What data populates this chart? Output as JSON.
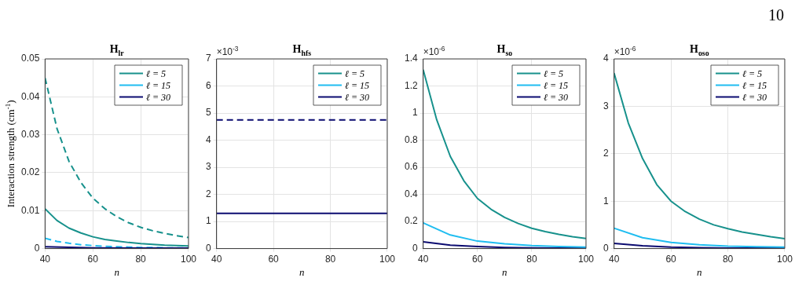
{
  "chart_data": [
    {
      "type": "line",
      "title": "H$_{lr}$",
      "xlabel": "n",
      "ylabel": "Interaction strength (cm$^{-1}$)",
      "xlim": [
        40,
        100
      ],
      "xticks": [
        40,
        60,
        80,
        100
      ],
      "ylim": [
        0,
        0.05
      ],
      "yticks": [
        0,
        0.01,
        0.02,
        0.03,
        0.04,
        0.05
      ],
      "grid": true,
      "legend": "top right",
      "marker": "none",
      "series": [
        {
          "name": "ℓ = 5",
          "color": "#17918c",
          "line_style": "solid",
          "x": [
            40,
            45,
            50,
            55,
            60,
            65,
            70,
            75,
            80,
            85,
            90,
            95,
            100
          ],
          "values": [
            0.0105,
            0.0074,
            0.0054,
            0.0041,
            0.0031,
            0.0024,
            0.002,
            0.0016,
            0.0013,
            0.0011,
            0.0009,
            0.0008,
            0.0007
          ]
        },
        {
          "name": "ℓ = 15",
          "color": "#1fbdf0",
          "line_style": "solid"
        },
        {
          "name": "ℓ = 30",
          "color": "#0b0b70",
          "line_style": "solid",
          "x": [
            40,
            60,
            80,
            100
          ],
          "values": [
            0.0005,
            0.0002,
            0.0001,
            0.0001
          ]
        },
        {
          "color": "#17918c",
          "line_style": "dashed",
          "x": [
            40,
            45,
            50,
            55,
            60,
            65,
            70,
            75,
            80,
            85,
            90,
            95,
            100
          ],
          "values": [
            0.045,
            0.0316,
            0.023,
            0.0174,
            0.0133,
            0.0105,
            0.0084,
            0.0068,
            0.0056,
            0.0047,
            0.004,
            0.0034,
            0.0029
          ]
        },
        {
          "color": "#1fbdf0",
          "line_style": "dashed",
          "x": [
            40,
            45,
            50,
            55,
            60,
            65,
            70,
            75,
            80,
            85,
            90,
            95,
            100
          ],
          "values": [
            0.0027,
            0.0019,
            0.0014,
            0.001,
            0.0008,
            0.0006,
            0.0005,
            0.0004,
            0.0003,
            0.0003,
            0.0002,
            0.0002,
            0.0002
          ]
        }
      ]
    },
    {
      "type": "line",
      "title": "H$_{hfs}$",
      "xlabel": "n",
      "xlim": [
        40,
        100
      ],
      "xticks": [
        40,
        60,
        80,
        100
      ],
      "ylim": [
        0,
        7
      ],
      "yticks": [
        0,
        1,
        2,
        3,
        4,
        5,
        6,
        7
      ],
      "grid": true,
      "legend": "top right",
      "marker": "none",
      "annotations": [
        "×10$^{-3}$"
      ],
      "series": [
        {
          "name": "ℓ = 5",
          "color": "#17918c",
          "line_style": "solid"
        },
        {
          "name": "ℓ = 15",
          "color": "#1fbdf0",
          "line_style": "solid"
        },
        {
          "name": "ℓ = 30",
          "color": "#0b0b70",
          "line_style": "solid",
          "x": [
            40,
            100
          ],
          "values": [
            1.3,
            1.3
          ]
        },
        {
          "color": "#0b0b70",
          "line_style": "dashed",
          "x": [
            40,
            100
          ],
          "values": [
            4.75,
            4.75
          ]
        }
      ]
    },
    {
      "type": "line",
      "title": "H$_{so}$",
      "xlabel": "n",
      "xlim": [
        40,
        100
      ],
      "xticks": [
        40,
        60,
        80,
        100
      ],
      "ylim": [
        0,
        1.4
      ],
      "yticks": [
        0,
        0.2,
        0.4,
        0.6,
        0.8,
        1,
        1.2,
        1.4
      ],
      "grid": true,
      "legend": "top right",
      "marker": "none",
      "annotations": [
        "×10$^{-6}$"
      ],
      "series": [
        {
          "name": "ℓ = 5",
          "color": "#17918c",
          "line_style": "solid",
          "x": [
            40,
            45,
            50,
            55,
            60,
            65,
            70,
            75,
            80,
            85,
            90,
            95,
            100
          ],
          "values": [
            1.32,
            0.95,
            0.68,
            0.5,
            0.37,
            0.29,
            0.23,
            0.185,
            0.15,
            0.125,
            0.105,
            0.088,
            0.075
          ]
        },
        {
          "name": "ℓ = 15",
          "color": "#1fbdf0",
          "line_style": "solid",
          "x": [
            40,
            50,
            60,
            70,
            80,
            90,
            100
          ],
          "values": [
            0.19,
            0.1,
            0.055,
            0.035,
            0.022,
            0.015,
            0.011
          ]
        },
        {
          "name": "ℓ = 30",
          "color": "#0b0b70",
          "line_style": "solid",
          "x": [
            40,
            50,
            60,
            70,
            80,
            90,
            100
          ],
          "values": [
            0.05,
            0.025,
            0.015,
            0.008,
            0.005,
            0.004,
            0.003
          ]
        }
      ]
    },
    {
      "type": "line",
      "title": "H$_{oso}$",
      "xlabel": "n",
      "xlim": [
        40,
        100
      ],
      "xticks": [
        40,
        60,
        80,
        100
      ],
      "ylim": [
        0,
        4
      ],
      "yticks": [
        0,
        1,
        2,
        3,
        4
      ],
      "grid": true,
      "legend": "top right",
      "marker": "none",
      "annotations": [
        "×10$^{-6}$",
        "10"
      ],
      "series": [
        {
          "name": "ℓ = 5",
          "color": "#17918c",
          "line_style": "solid",
          "x": [
            40,
            45,
            50,
            55,
            60,
            65,
            70,
            75,
            80,
            85,
            90,
            95,
            100
          ],
          "values": [
            3.7,
            2.65,
            1.9,
            1.35,
            1,
            0.78,
            0.62,
            0.5,
            0.42,
            0.35,
            0.3,
            0.25,
            0.21
          ]
        },
        {
          "name": "ℓ = 15",
          "color": "#1fbdf0",
          "line_style": "solid",
          "x": [
            40,
            50,
            60,
            70,
            80,
            90,
            100
          ],
          "values": [
            0.43,
            0.23,
            0.13,
            0.08,
            0.05,
            0.04,
            0.03
          ]
        },
        {
          "name": "ℓ = 30",
          "color": "#0b0b70",
          "line_style": "solid",
          "x": [
            40,
            50,
            60,
            70,
            80,
            90,
            100
          ],
          "values": [
            0.11,
            0.06,
            0.03,
            0.02,
            0.01,
            0.01,
            0.01
          ]
        }
      ]
    }
  ]
}
